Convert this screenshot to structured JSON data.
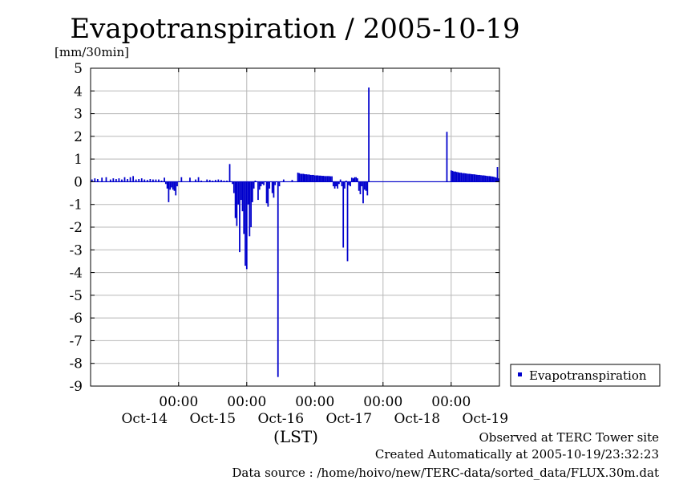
{
  "chart_data": {
    "type": "bar",
    "title": "Evapotranspiration / 2005-10-19",
    "ylabel": "[mm/30min]",
    "xlabel": "(LST)",
    "ylim": [
      -9,
      5
    ],
    "yticks": [
      5,
      4,
      3,
      2,
      1,
      0,
      -1,
      -2,
      -3,
      -4,
      -5,
      -6,
      -7,
      -8,
      -9
    ],
    "x_unit": "hours since 2005-10-14 00:00 LST",
    "xlim": [
      -7,
      137
    ],
    "grid": true,
    "bar_color": "#0000cc",
    "xticks": [
      {
        "at": 24,
        "time": "00:00",
        "date": ""
      },
      {
        "at": 48,
        "time": "00:00",
        "date": ""
      },
      {
        "at": 72,
        "time": "00:00",
        "date": ""
      },
      {
        "at": 96,
        "time": "00:00",
        "date": ""
      },
      {
        "at": 120,
        "time": "00:00",
        "date": ""
      }
    ],
    "date_labels": [
      {
        "at": 12,
        "label": "Oct-14"
      },
      {
        "at": 36,
        "label": "Oct-15"
      },
      {
        "at": 60,
        "label": "Oct-16"
      },
      {
        "at": 84,
        "label": "Oct-17"
      },
      {
        "at": 108,
        "label": "Oct-18"
      },
      {
        "at": 132,
        "label": "Oct-19"
      }
    ],
    "legend": {
      "entries": [
        "Evapotranspiration"
      ],
      "position": "right"
    },
    "series": [
      {
        "name": "Evapotranspiration",
        "bar_width_hours": 0.5,
        "points": [
          [
            -6.5,
            0.1
          ],
          [
            -5.5,
            0.15
          ],
          [
            -4.5,
            0.12
          ],
          [
            -3,
            0.18
          ],
          [
            -1.5,
            0.2
          ],
          [
            0,
            0.1
          ],
          [
            1,
            0.15
          ],
          [
            2,
            0.12
          ],
          [
            3,
            0.15
          ],
          [
            4,
            0.1
          ],
          [
            5,
            0.2
          ],
          [
            6,
            0.12
          ],
          [
            7,
            0.2
          ],
          [
            8,
            0.25
          ],
          [
            9,
            0.1
          ],
          [
            10,
            0.12
          ],
          [
            11,
            0.15
          ],
          [
            12,
            0.1
          ],
          [
            13,
            0.08
          ],
          [
            14,
            0.12
          ],
          [
            15,
            0.1
          ],
          [
            16,
            0.1
          ],
          [
            17,
            0.1
          ],
          [
            18,
            0.05
          ],
          [
            19,
            0.18
          ],
          [
            19.5,
            -0.1
          ],
          [
            20,
            -0.3
          ],
          [
            20.5,
            -0.9
          ],
          [
            21,
            -0.35
          ],
          [
            21.5,
            -0.25
          ],
          [
            22,
            -0.35
          ],
          [
            22.5,
            -0.4
          ],
          [
            23,
            -0.6
          ],
          [
            23.5,
            -0.2
          ],
          [
            25,
            0.2
          ],
          [
            28,
            0.18
          ],
          [
            30,
            0.1
          ],
          [
            31,
            0.2
          ],
          [
            32,
            0.05
          ],
          [
            34,
            0.1
          ],
          [
            35,
            0.08
          ],
          [
            36,
            0.05
          ],
          [
            37,
            0.08
          ],
          [
            38,
            0.1
          ],
          [
            39,
            0.08
          ],
          [
            40,
            0.05
          ],
          [
            41,
            0.05
          ],
          [
            42,
            0.78
          ],
          [
            43,
            -0.1
          ],
          [
            43.5,
            -0.5
          ],
          [
            44,
            -1.6
          ],
          [
            44.5,
            -1.95
          ],
          [
            45,
            -1.0
          ],
          [
            45.5,
            -3.1
          ],
          [
            46,
            -0.8
          ],
          [
            46.5,
            -1.3
          ],
          [
            47,
            -2.3
          ],
          [
            47.5,
            -3.7
          ],
          [
            48,
            -3.85
          ],
          [
            48.5,
            -1.0
          ],
          [
            49,
            -2.4
          ],
          [
            49.5,
            -2.0
          ],
          [
            50,
            -0.9
          ],
          [
            50.5,
            -0.3
          ],
          [
            51,
            0.05
          ],
          [
            52,
            -0.8
          ],
          [
            52.5,
            -0.35
          ],
          [
            53,
            -0.2
          ],
          [
            53.5,
            -0.1
          ],
          [
            54,
            -0.15
          ],
          [
            55,
            -0.95
          ],
          [
            55.5,
            -1.1
          ],
          [
            56,
            -0.3
          ],
          [
            57,
            -0.5
          ],
          [
            57.5,
            -0.7
          ],
          [
            58,
            -0.15
          ],
          [
            59,
            -8.6
          ],
          [
            59.5,
            -0.2
          ],
          [
            61,
            0.1
          ],
          [
            64,
            0.08
          ],
          [
            66,
            0.4
          ],
          [
            66.5,
            0.38
          ],
          [
            67,
            0.35
          ],
          [
            67.5,
            0.35
          ],
          [
            68,
            0.35
          ],
          [
            68.5,
            0.33
          ],
          [
            69,
            0.33
          ],
          [
            69.5,
            0.32
          ],
          [
            70,
            0.32
          ],
          [
            70.5,
            0.3
          ],
          [
            71,
            0.3
          ],
          [
            71.5,
            0.3
          ],
          [
            72,
            0.28
          ],
          [
            72.5,
            0.28
          ],
          [
            73,
            0.28
          ],
          [
            73.5,
            0.27
          ],
          [
            74,
            0.27
          ],
          [
            74.5,
            0.26
          ],
          [
            75,
            0.26
          ],
          [
            75.5,
            0.25
          ],
          [
            76,
            0.25
          ],
          [
            76.5,
            0.25
          ],
          [
            77,
            0.25
          ],
          [
            77.5,
            0.24
          ],
          [
            78,
            0.24
          ],
          [
            78.5,
            -0.2
          ],
          [
            79,
            -0.3
          ],
          [
            79.5,
            -0.2
          ],
          [
            80,
            -0.3
          ],
          [
            80.5,
            -0.1
          ],
          [
            81,
            0.1
          ],
          [
            81.5,
            -0.2
          ],
          [
            82,
            -2.9
          ],
          [
            82.5,
            -0.3
          ],
          [
            83,
            0.05
          ],
          [
            83.5,
            -3.5
          ],
          [
            84,
            -0.15
          ],
          [
            84.5,
            -0.2
          ],
          [
            85,
            0.18
          ],
          [
            85.5,
            0.15
          ],
          [
            86,
            0.2
          ],
          [
            86.5,
            0.2
          ],
          [
            87,
            0.15
          ],
          [
            87.5,
            -0.4
          ],
          [
            88,
            -0.55
          ],
          [
            88.5,
            -0.2
          ],
          [
            89,
            -0.95
          ],
          [
            89.5,
            -0.35
          ],
          [
            90,
            -0.4
          ],
          [
            90.5,
            -0.6
          ],
          [
            91,
            4.15
          ],
          [
            118.5,
            2.2
          ],
          [
            120,
            0.5
          ],
          [
            120.5,
            0.48
          ],
          [
            121,
            0.45
          ],
          [
            121.5,
            0.45
          ],
          [
            122,
            0.43
          ],
          [
            122.5,
            0.42
          ],
          [
            123,
            0.4
          ],
          [
            123.5,
            0.4
          ],
          [
            124,
            0.38
          ],
          [
            124.5,
            0.38
          ],
          [
            125,
            0.37
          ],
          [
            125.5,
            0.36
          ],
          [
            126,
            0.35
          ],
          [
            126.5,
            0.35
          ],
          [
            127,
            0.34
          ],
          [
            127.5,
            0.33
          ],
          [
            128,
            0.33
          ],
          [
            128.5,
            0.32
          ],
          [
            129,
            0.31
          ],
          [
            129.5,
            0.3
          ],
          [
            130,
            0.3
          ],
          [
            130.5,
            0.29
          ],
          [
            131,
            0.28
          ],
          [
            131.5,
            0.28
          ],
          [
            132,
            0.27
          ],
          [
            132.5,
            0.26
          ],
          [
            133,
            0.25
          ],
          [
            133.5,
            0.25
          ],
          [
            134,
            0.24
          ],
          [
            134.5,
            0.23
          ],
          [
            135,
            0.22
          ],
          [
            135.5,
            0.2
          ],
          [
            136,
            0.18
          ],
          [
            136.3,
            0.65
          ],
          [
            136.6,
            0.15
          ]
        ]
      }
    ]
  },
  "footer": {
    "observed": "Observed at TERC Tower site",
    "created": "Created Automatically at 2005-10-19/23:32:23",
    "source": "Data source : /home/hoivo/new/TERC-data/sorted_data/FLUX.30m.dat"
  }
}
